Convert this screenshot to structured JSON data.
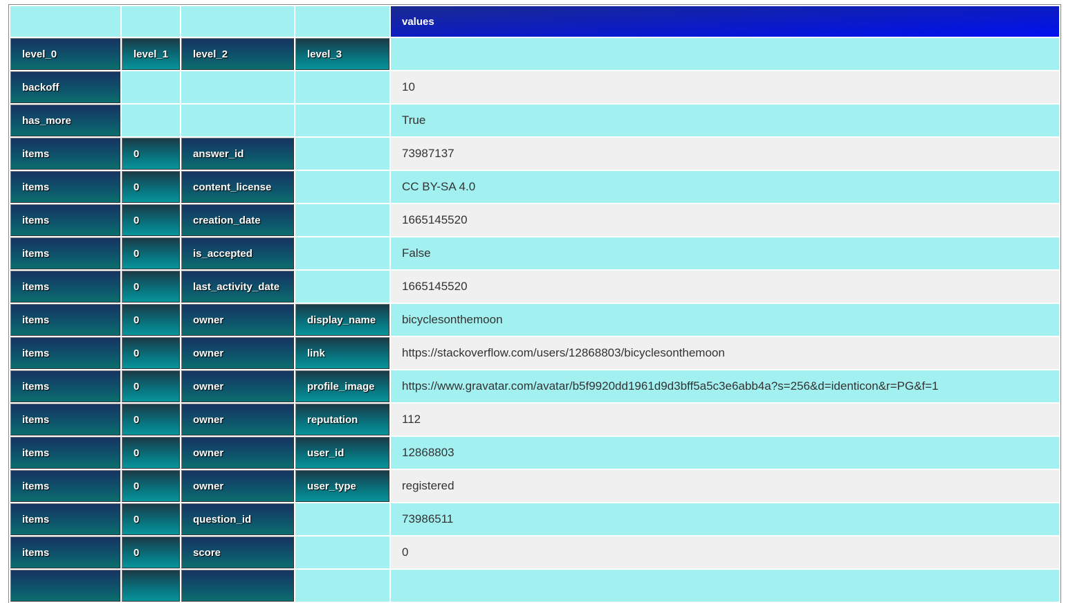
{
  "header": {
    "values_label": "values"
  },
  "index_names": [
    "level_0",
    "level_1",
    "level_2",
    "level_3"
  ],
  "rows": [
    {
      "l0": "backoff",
      "l1": "",
      "l2": "",
      "l3": "",
      "value": "10"
    },
    {
      "l0": "has_more",
      "l1": "",
      "l2": "",
      "l3": "",
      "value": "True"
    },
    {
      "l0": "items",
      "l1": "0",
      "l2": "answer_id",
      "l3": "",
      "value": "73987137"
    },
    {
      "l0": "items",
      "l1": "0",
      "l2": "content_license",
      "l3": "",
      "value": "CC BY-SA 4.0"
    },
    {
      "l0": "items",
      "l1": "0",
      "l2": "creation_date",
      "l3": "",
      "value": "1665145520"
    },
    {
      "l0": "items",
      "l1": "0",
      "l2": "is_accepted",
      "l3": "",
      "value": "False"
    },
    {
      "l0": "items",
      "l1": "0",
      "l2": "last_activity_date",
      "l3": "",
      "value": "1665145520"
    },
    {
      "l0": "items",
      "l1": "0",
      "l2": "owner",
      "l3": "display_name",
      "value": "bicyclesonthemoon"
    },
    {
      "l0": "items",
      "l1": "0",
      "l2": "owner",
      "l3": "link",
      "value": "https://stackoverflow.com/users/12868803/bicyclesonthemoon"
    },
    {
      "l0": "items",
      "l1": "0",
      "l2": "owner",
      "l3": "profile_image",
      "value": "https://www.gravatar.com/avatar/b5f9920dd1961d9d3bff5a5c3e6abb4a?s=256&d=identicon&r=PG&f=1"
    },
    {
      "l0": "items",
      "l1": "0",
      "l2": "owner",
      "l3": "reputation",
      "value": "112"
    },
    {
      "l0": "items",
      "l1": "0",
      "l2": "owner",
      "l3": "user_id",
      "value": "12868803"
    },
    {
      "l0": "items",
      "l1": "0",
      "l2": "owner",
      "l3": "user_type",
      "value": "registered"
    },
    {
      "l0": "items",
      "l1": "0",
      "l2": "question_id",
      "l3": "",
      "value": "73986511"
    },
    {
      "l0": "items",
      "l1": "0",
      "l2": "score",
      "l3": "",
      "value": "0"
    }
  ]
}
